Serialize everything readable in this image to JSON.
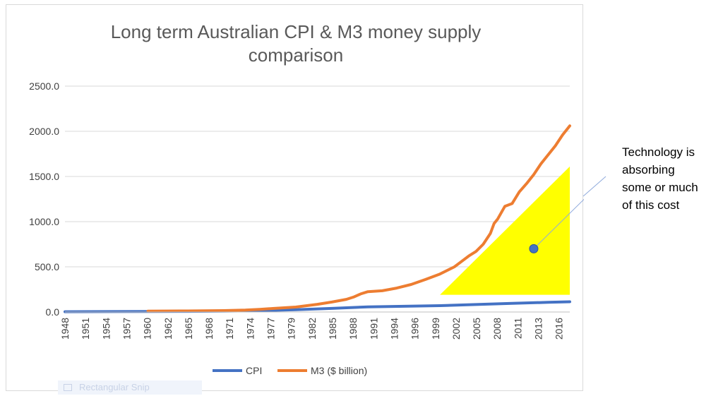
{
  "chart_data": {
    "type": "line",
    "title": "Long term Australian CPI & M3 money supply comparison",
    "title_lines": [
      "Long term Australian CPI & M3 money supply",
      "comparison"
    ],
    "xlabel": "",
    "ylabel": "",
    "ylim": [
      0,
      2500
    ],
    "yticks": [
      "0.0",
      "500.0",
      "1000.0",
      "1500.0",
      "2000.0",
      "2500.0"
    ],
    "xlim": [
      1948,
      2018
    ],
    "x_tick_labels": [
      "1948",
      "1951",
      "1954",
      "1957",
      "1960",
      "1962",
      "1965",
      "1968",
      "1971",
      "1974",
      "1977",
      "1979",
      "1982",
      "1985",
      "1988",
      "1991",
      "1994",
      "1996",
      "1999",
      "2002",
      "2005",
      "2008",
      "2011",
      "2013",
      "2016"
    ],
    "grid": "horizontal",
    "legend_position": "bottom",
    "series": [
      {
        "name": "CPI",
        "color": "#4472c4",
        "x": [
          1948,
          1955,
          1960,
          1965,
          1970,
          1975,
          1980,
          1985,
          1990,
          1995,
          2000,
          2005,
          2010,
          2015,
          2018
        ],
        "values": [
          3,
          5,
          6,
          7,
          9,
          15,
          25,
          40,
          57,
          63,
          70,
          83,
          96,
          107,
          113
        ]
      },
      {
        "name": "M3 ($ billion)",
        "color": "#ed7d31",
        "x": [
          1959.5,
          1965,
          1970,
          1973,
          1975,
          1977,
          1980,
          1983,
          1985,
          1987,
          1988,
          1989,
          1990,
          1992,
          1994,
          1996,
          1998,
          2000,
          2002,
          2003,
          2004,
          2005,
          2006,
          2007,
          2007.5,
          2008,
          2009,
          2010,
          2011,
          2012,
          2013,
          2014,
          2015,
          2016,
          2017,
          2018
        ],
        "values": [
          10,
          12,
          16,
          22,
          30,
          40,
          55,
          85,
          110,
          140,
          165,
          200,
          225,
          235,
          265,
          305,
          360,
          420,
          500,
          560,
          620,
          670,
          750,
          870,
          980,
          1030,
          1170,
          1200,
          1330,
          1420,
          1520,
          1640,
          1740,
          1840,
          1960,
          2060
        ]
      }
    ],
    "shapes": [
      {
        "kind": "triangle",
        "color": "#ffff00",
        "points": [
          [
            2000,
            190
          ],
          [
            2018,
            1610
          ],
          [
            2018,
            190
          ]
        ]
      }
    ],
    "annotations": [
      {
        "text_lines": [
          "Technology is",
          "absorbing",
          "some or much",
          "of this cost"
        ],
        "marker_point": [
          2013,
          700
        ],
        "marker_color": "#4472c4",
        "line_color": "#8faadc"
      }
    ]
  },
  "overlay": {
    "faint_label": "Rectangular Snip"
  }
}
